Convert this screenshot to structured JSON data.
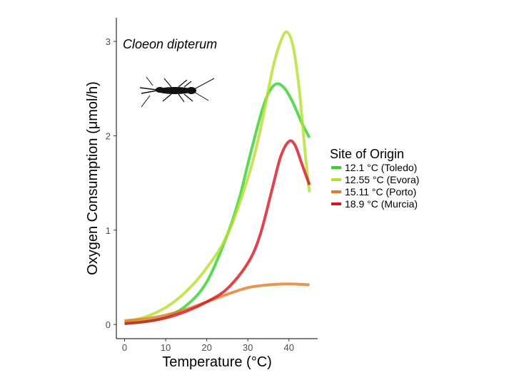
{
  "chart_data": {
    "type": "line",
    "xlabel": "Temperature (°C)",
    "ylabel": "Oxygen Consumption (μmol/h)",
    "annotation": "Cloeon dipterum",
    "annotation_image": "mayfly-silhouette",
    "xlim": [
      -2,
      47
    ],
    "ylim": [
      -0.15,
      3.25
    ],
    "xticks": [
      0,
      10,
      20,
      30,
      40
    ],
    "yticks": [
      0,
      1,
      2,
      3
    ],
    "grid": false,
    "legend": {
      "title": "Site of Origin",
      "position": "right"
    },
    "series": [
      {
        "name": "12.1 °C (Toledo)",
        "color": "#35d12b",
        "x": [
          0,
          5,
          10,
          15,
          20,
          25,
          28,
          30,
          33,
          35,
          37,
          39,
          41,
          43,
          45
        ],
        "y": [
          0.01,
          0.03,
          0.08,
          0.2,
          0.45,
          0.95,
          1.35,
          1.7,
          2.2,
          2.45,
          2.55,
          2.5,
          2.35,
          2.15,
          1.98
        ]
      },
      {
        "name": "12.55 °C (Evora)",
        "color": "#b5de2c",
        "x": [
          0,
          5,
          10,
          15,
          20,
          25,
          30,
          33,
          36,
          38,
          39.5,
          41,
          42.5,
          44,
          45
        ],
        "y": [
          0.03,
          0.08,
          0.18,
          0.35,
          0.6,
          0.95,
          1.55,
          2.05,
          2.7,
          3.0,
          3.1,
          2.95,
          2.5,
          1.8,
          1.4
        ]
      },
      {
        "name": "15.11 °C (Porto)",
        "color": "#e07b28",
        "x": [
          0,
          5,
          10,
          15,
          20,
          25,
          30,
          35,
          40,
          45
        ],
        "y": [
          0.04,
          0.06,
          0.1,
          0.16,
          0.24,
          0.32,
          0.39,
          0.42,
          0.43,
          0.42
        ]
      },
      {
        "name": "18.9 °C (Murcia)",
        "color": "#d6151f",
        "x": [
          0,
          5,
          10,
          15,
          20,
          25,
          30,
          33,
          36,
          38,
          40,
          41.5,
          43,
          44,
          45
        ],
        "y": [
          0.01,
          0.03,
          0.07,
          0.14,
          0.24,
          0.38,
          0.65,
          0.95,
          1.45,
          1.78,
          1.94,
          1.9,
          1.72,
          1.6,
          1.48
        ]
      }
    ]
  }
}
